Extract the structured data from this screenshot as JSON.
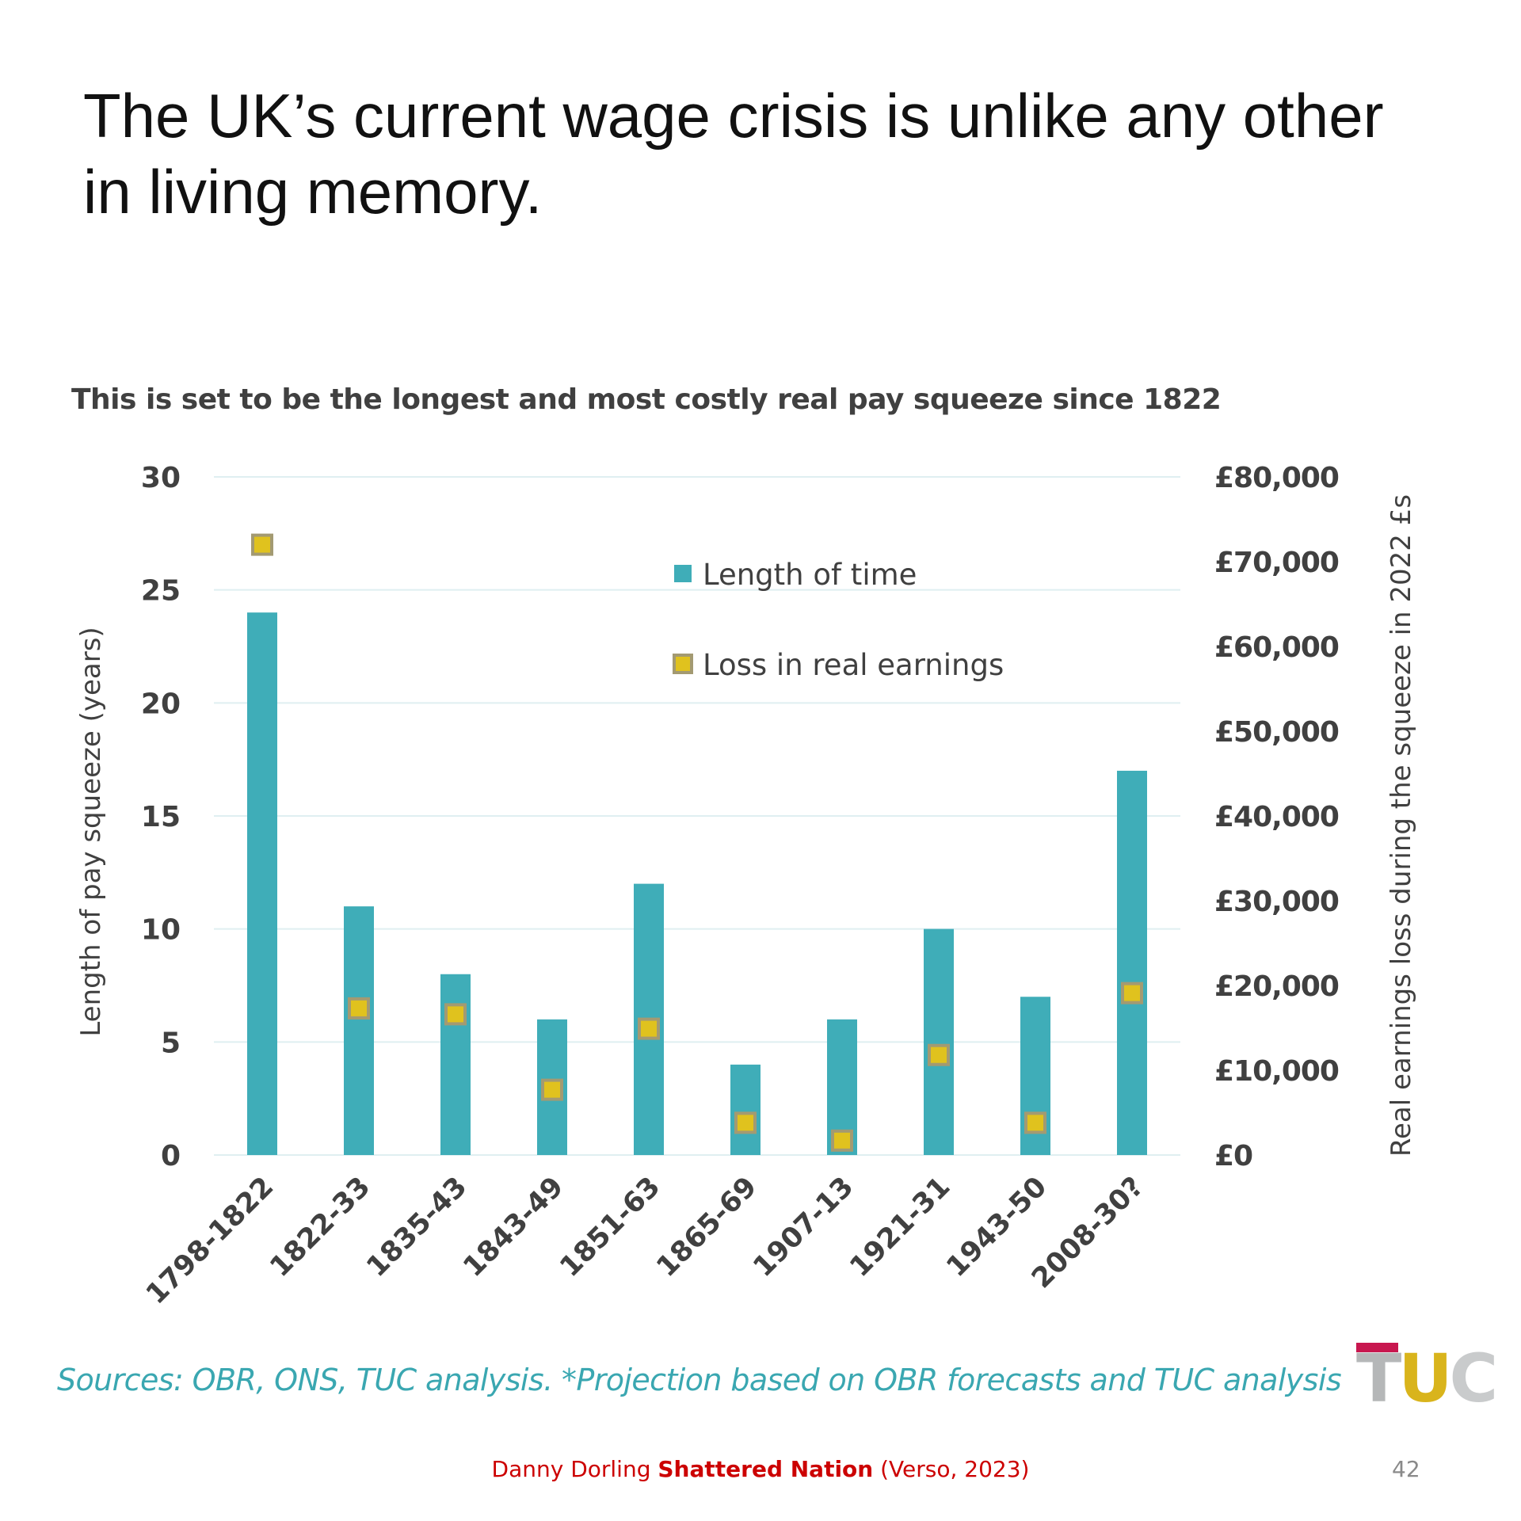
{
  "slide": {
    "title": "The UK’s current wage crisis is unlike any other in living memory.",
    "sources": "Sources: OBR, ONS, TUC analysis. *Projection based on OBR forecasts and TUC analysis",
    "logo_text": "TUC",
    "credit_author": "Danny Dorling",
    "credit_book": "Shattered Nation",
    "credit_publisher": "(Verso, 2023)",
    "page_number": "42"
  },
  "colors": {
    "bar": "#3fadb8",
    "marker_fill": "#e0c21e",
    "marker_border": "#a39a72",
    "grid": "#dfeff1",
    "axis_text": "#404040",
    "title_text": "#111111",
    "sources_text": "#3aa7b1",
    "credit_text": "#cc0000"
  },
  "chart_data": {
    "type": "bar",
    "title": "This is set to be the longest and most costly real pay squeeze since 1822",
    "categories": [
      "1798-1822",
      "1822-33",
      "1835-43",
      "1843-49",
      "1851-63",
      "1865-69",
      "1907-13",
      "1921-31",
      "1943-50",
      "2008-30?"
    ],
    "series": [
      {
        "name": "Length of time",
        "kind": "bar",
        "axis": "left",
        "values": [
          24,
          11,
          8,
          6,
          12,
          4,
          6,
          10,
          7,
          17
        ]
      },
      {
        "name": "Loss in real earnings",
        "kind": "marker",
        "axis": "right",
        "values": [
          72000,
          17300,
          16600,
          7700,
          14900,
          3800,
          1700,
          11800,
          3800,
          19100
        ]
      }
    ],
    "ylabel": "Length of pay squeeze (years)",
    "ylim": [
      0,
      30
    ],
    "y_ticks": [
      "0",
      "5",
      "10",
      "15",
      "20",
      "25",
      "30"
    ],
    "y2label": "Real earnings loss during the squeeze in 2022 £s",
    "y2lim": [
      0,
      80000
    ],
    "y2_ticks": [
      "£0",
      "£10,000",
      "£20,000",
      "£30,000",
      "£40,000",
      "£50,000",
      "£60,000",
      "£70,000",
      "£80,000"
    ],
    "grid": true,
    "legend_position": "top-center"
  }
}
